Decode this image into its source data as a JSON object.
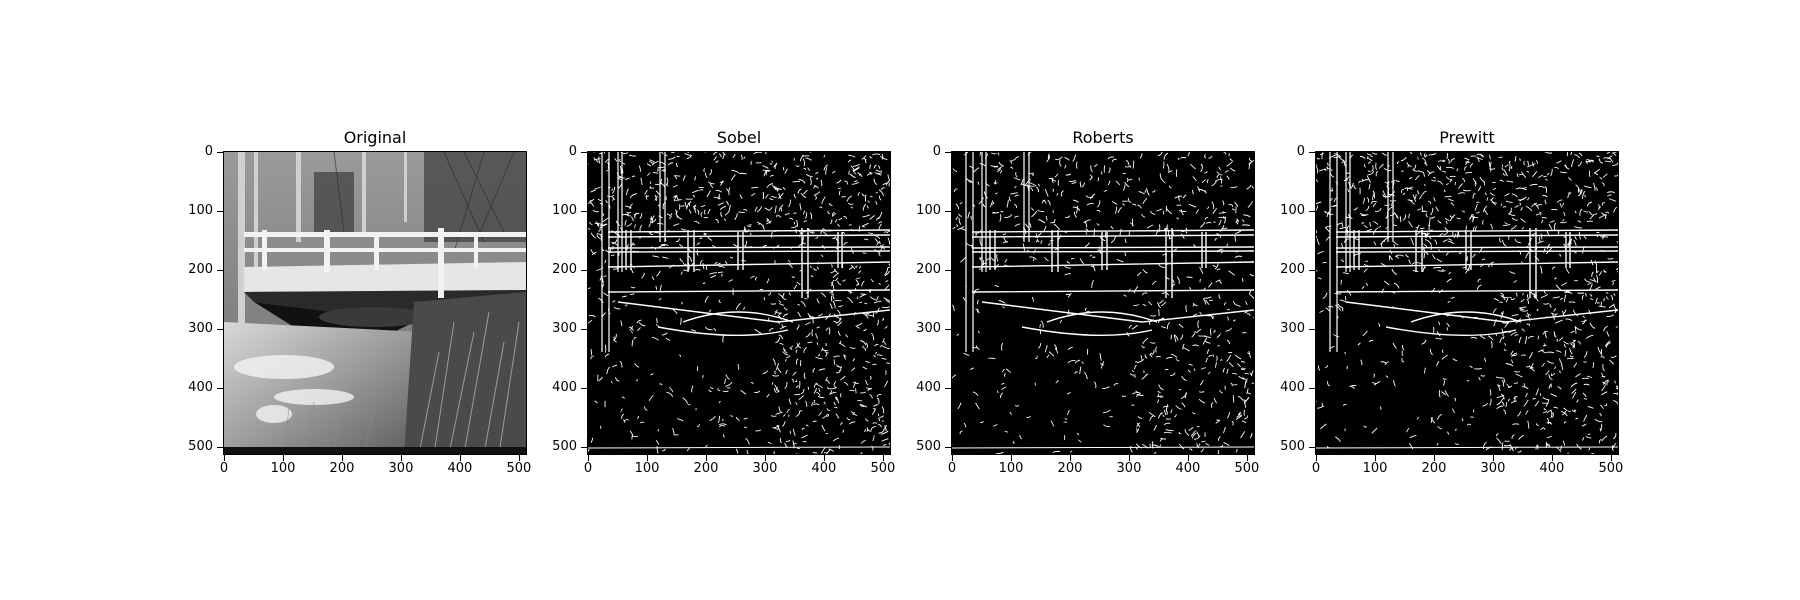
{
  "figure": {
    "panels": [
      {
        "id": "original",
        "title": "Original",
        "style": "photo"
      },
      {
        "id": "sobel",
        "title": "Sobel",
        "style": "edges"
      },
      {
        "id": "roberts",
        "title": "Roberts",
        "style": "edges-dark"
      },
      {
        "id": "prewitt",
        "title": "Prewitt",
        "style": "edges"
      }
    ],
    "axes": {
      "x_ticks": [
        "0",
        "100",
        "200",
        "300",
        "400",
        "500"
      ],
      "y_ticks": [
        "0",
        "100",
        "200",
        "300",
        "400",
        "500"
      ],
      "x_tick_values": [
        0,
        100,
        200,
        300,
        400,
        500
      ],
      "y_tick_values": [
        0,
        100,
        200,
        300,
        400,
        500
      ],
      "range": [
        0,
        512
      ]
    },
    "colors": {
      "background": "#ffffff",
      "edge_bg": "#000000",
      "edge_fg": "#ffffff"
    }
  }
}
